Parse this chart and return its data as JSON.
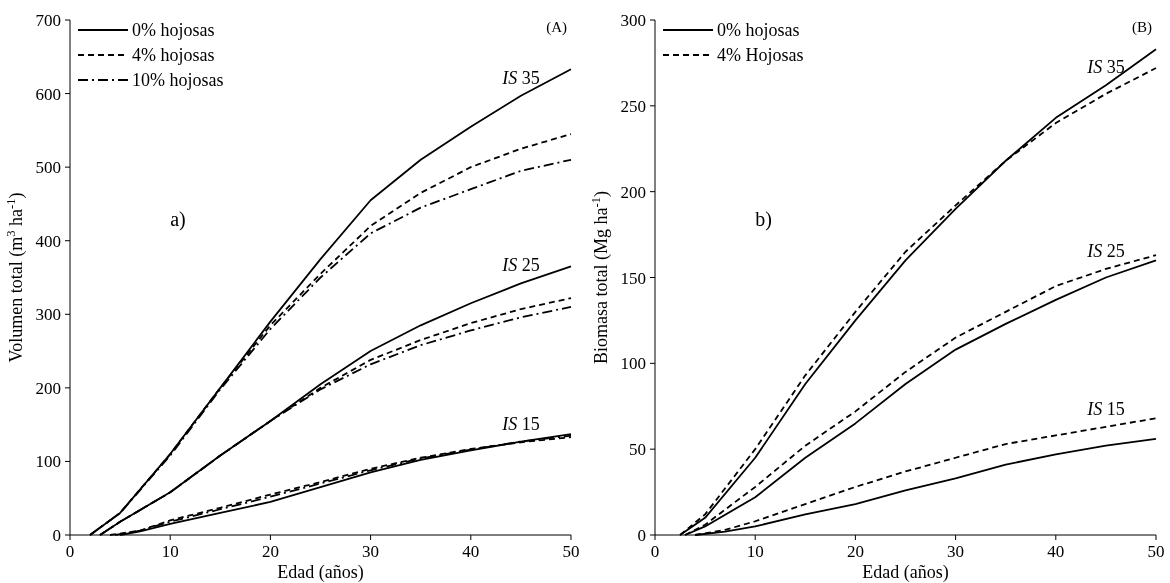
{
  "chart_data": [
    {
      "type": "line",
      "xlabel": "Edad (años)",
      "ylabel": "Volumen total (m$^{3}$ ha$^{-1}$)",
      "x": [
        2,
        5,
        10,
        15,
        20,
        25,
        30,
        35,
        40,
        45,
        50
      ],
      "xlim": [
        0,
        50
      ],
      "xticks": [
        0,
        10,
        20,
        30,
        40,
        50
      ],
      "ylim": [
        0,
        700
      ],
      "yticks": [
        0,
        100,
        200,
        300,
        400,
        500,
        600,
        700
      ],
      "legend": "top left",
      "annotations": [
        "(A)",
        "a)",
        "IS 35",
        "IS 25",
        "IS 15"
      ],
      "series": [
        {
          "name": "0% hojosas",
          "color": "#000000",
          "line_style": "solid",
          "values": [
            0,
            30,
            110,
            200,
            290,
            375,
            455,
            510,
            555,
            597,
            633
          ]
        },
        {
          "name": "4% hojosas",
          "color": "#000000",
          "line_style": "dashed",
          "values": [
            0,
            30,
            110,
            200,
            285,
            355,
            420,
            465,
            500,
            525,
            545
          ]
        },
        {
          "name": "10% hojosas",
          "color": "#000000",
          "line_style": "dashdot",
          "values": [
            0,
            30,
            108,
            198,
            280,
            350,
            410,
            445,
            470,
            495,
            510
          ]
        },
        {
          "color": "#000000",
          "line_style": "solid",
          "x": [
            3,
            5,
            10,
            15,
            20,
            25,
            30,
            35,
            40,
            45,
            50
          ],
          "values": [
            0,
            18,
            58,
            108,
            155,
            205,
            250,
            285,
            315,
            342,
            365
          ]
        },
        {
          "color": "#000000",
          "line_style": "dashed",
          "x": [
            3,
            5,
            10,
            15,
            20,
            25,
            30,
            35,
            40,
            45,
            50
          ],
          "values": [
            0,
            18,
            58,
            108,
            155,
            200,
            238,
            265,
            288,
            307,
            322
          ]
        },
        {
          "color": "#000000",
          "line_style": "dashdot",
          "x": [
            3,
            5,
            10,
            15,
            20,
            25,
            30,
            35,
            40,
            45,
            50
          ],
          "values": [
            0,
            18,
            58,
            108,
            155,
            198,
            232,
            258,
            278,
            296,
            310
          ]
        },
        {
          "color": "#000000",
          "line_style": "solid",
          "x": [
            5,
            7,
            10,
            15,
            20,
            25,
            30,
            35,
            40,
            45,
            50
          ],
          "values": [
            0,
            5,
            15,
            30,
            45,
            65,
            85,
            102,
            115,
            127,
            137
          ]
        },
        {
          "color": "#000000",
          "line_style": "dashed",
          "x": [
            4,
            7,
            10,
            15,
            20,
            25,
            30,
            35,
            40,
            45,
            50
          ],
          "values": [
            0,
            6,
            20,
            37,
            55,
            72,
            90,
            105,
            117,
            126,
            133
          ]
        },
        {
          "color": "#000000",
          "line_style": "dashdot",
          "x": [
            4.5,
            7,
            10,
            15,
            20,
            25,
            30,
            35,
            40,
            45,
            50
          ],
          "values": [
            0,
            6,
            18,
            35,
            52,
            70,
            88,
            104,
            116,
            127,
            135
          ]
        }
      ]
    },
    {
      "type": "line",
      "xlabel": "Edad (años)",
      "ylabel": "Biomasa total (Mg ha$^{-1}$)",
      "x": [
        2.5,
        5,
        10,
        15,
        20,
        25,
        30,
        35,
        40,
        45,
        50
      ],
      "xlim": [
        0,
        50
      ],
      "xticks": [
        0,
        10,
        20,
        30,
        40,
        50
      ],
      "ylim": [
        0,
        300
      ],
      "yticks": [
        0,
        50,
        100,
        150,
        200,
        250,
        300
      ],
      "legend": "top left",
      "annotations": [
        "(B)",
        "b)",
        "IS 35",
        "IS 25",
        "IS 15"
      ],
      "series": [
        {
          "name": "0% hojosas",
          "color": "#000000",
          "line_style": "solid",
          "values": [
            0,
            10,
            45,
            88,
            125,
            160,
            190,
            218,
            243,
            262,
            283
          ]
        },
        {
          "name": "4% Hojosas",
          "color": "#000000",
          "line_style": "dashed",
          "values": [
            0,
            12,
            50,
            93,
            130,
            165,
            192,
            218,
            240,
            257,
            272
          ]
        },
        {
          "color": "#000000",
          "line_style": "solid",
          "x": [
            3,
            5,
            10,
            15,
            20,
            25,
            30,
            35,
            40,
            45,
            50
          ],
          "values": [
            0,
            5,
            22,
            45,
            65,
            88,
            108,
            123,
            137,
            150,
            160
          ]
        },
        {
          "color": "#000000",
          "line_style": "dashed",
          "x": [
            3,
            5,
            10,
            15,
            20,
            25,
            30,
            35,
            40,
            45,
            50
          ],
          "values": [
            0,
            6,
            28,
            52,
            72,
            95,
            115,
            130,
            145,
            155,
            163
          ]
        },
        {
          "color": "#000000",
          "line_style": "solid",
          "x": [
            4,
            7,
            10,
            15,
            20,
            25,
            30,
            35,
            40,
            45,
            50
          ],
          "values": [
            0,
            2,
            5,
            12,
            18,
            26,
            33,
            41,
            47,
            52,
            56
          ]
        },
        {
          "color": "#000000",
          "line_style": "dashed",
          "x": [
            4,
            7,
            10,
            15,
            20,
            25,
            30,
            35,
            40,
            45,
            50
          ],
          "values": [
            0,
            3,
            8,
            18,
            28,
            37,
            45,
            53,
            58,
            63,
            68
          ]
        }
      ]
    }
  ]
}
